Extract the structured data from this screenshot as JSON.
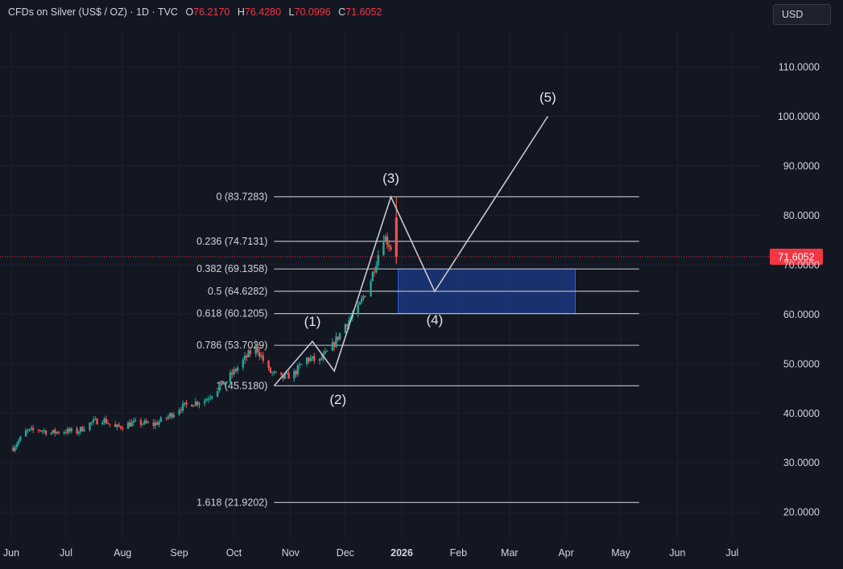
{
  "legend": {
    "symbol": "CFDs on Silver (US$ / OZ)",
    "interval": "1D",
    "source": "TVC",
    "open_label": "O",
    "open": "76.2170",
    "high_label": "H",
    "high": "76.4280",
    "low_label": "L",
    "low": "70.0996",
    "close_label": "C",
    "close": "71.6052"
  },
  "currency_button": "USD",
  "colors": {
    "background": "#131722",
    "up_candle": "#26a69a",
    "down_candle": "#ef5350",
    "price_line": "#f23645",
    "price_tag": "#f23645",
    "fib_line": "#b2b5be",
    "wave_line": "#c7c9d1",
    "target_box": "#2962ff",
    "axis_text": "#d1d4dc"
  },
  "chart_data": {
    "type": "candlestick",
    "title": "CFDs on Silver (US$ / OZ) · 1D · TVC",
    "ylim": [
      14.5,
      117
    ],
    "price_axis_ticks": [
      "110.0000",
      "100.0000",
      "90.0000",
      "80.0000",
      "70.0000",
      "60.0000",
      "50.0000",
      "40.0000",
      "30.0000",
      "20.0000"
    ],
    "time_axis_ticks": [
      {
        "label": "Jun",
        "date": "2025-06-01"
      },
      {
        "label": "Jul",
        "date": "2025-07-01"
      },
      {
        "label": "Aug",
        "date": "2025-08-01"
      },
      {
        "label": "Sep",
        "date": "2025-09-01"
      },
      {
        "label": "Oct",
        "date": "2025-10-01"
      },
      {
        "label": "Nov",
        "date": "2025-11-01"
      },
      {
        "label": "Dec",
        "date": "2025-12-01"
      },
      {
        "label": "2026",
        "date": "2026-01-01",
        "bold": true
      },
      {
        "label": "Feb",
        "date": "2026-02-01"
      },
      {
        "label": "Mar",
        "date": "2026-03-01"
      },
      {
        "label": "Apr",
        "date": "2026-04-01"
      },
      {
        "label": "May",
        "date": "2026-05-01"
      },
      {
        "label": "Jun",
        "date": "2026-06-01"
      },
      {
        "label": "Jul",
        "date": "2026-07-01"
      }
    ],
    "last_price": {
      "value": 71.6052,
      "label": "71.6052"
    },
    "series": [
      {
        "name": "CFDs on Silver (US$ / OZ)",
        "points": [
          {
            "date": "2025-06-02",
            "close": 33.0
          },
          {
            "date": "2025-06-09",
            "close": 36.2
          },
          {
            "date": "2025-06-16",
            "close": 36.7
          },
          {
            "date": "2025-06-23",
            "close": 36.0
          },
          {
            "date": "2025-06-30",
            "close": 36.4
          },
          {
            "date": "2025-07-07",
            "close": 36.2
          },
          {
            "date": "2025-07-14",
            "close": 37.9
          },
          {
            "date": "2025-07-21",
            "close": 38.8
          },
          {
            "date": "2025-07-28",
            "close": 37.0
          },
          {
            "date": "2025-08-04",
            "close": 37.8
          },
          {
            "date": "2025-08-11",
            "close": 38.0
          },
          {
            "date": "2025-08-18",
            "close": 37.7
          },
          {
            "date": "2025-08-25",
            "close": 39.0
          },
          {
            "date": "2025-09-01",
            "close": 41.0
          },
          {
            "date": "2025-09-08",
            "close": 42.0
          },
          {
            "date": "2025-09-15",
            "close": 42.6
          },
          {
            "date": "2025-09-22",
            "close": 45.0
          },
          {
            "date": "2025-09-29",
            "close": 47.5
          },
          {
            "date": "2025-10-06",
            "close": 50.5
          },
          {
            "date": "2025-10-13",
            "close": 53.6
          },
          {
            "date": "2025-10-20",
            "close": 48.5
          },
          {
            "date": "2025-10-27",
            "close": 47.0
          },
          {
            "date": "2025-11-03",
            "close": 48.0
          },
          {
            "date": "2025-11-10",
            "close": 51.0
          },
          {
            "date": "2025-11-17",
            "close": 50.5
          },
          {
            "date": "2025-11-24",
            "close": 53.5
          },
          {
            "date": "2025-12-01",
            "close": 58.0
          },
          {
            "date": "2025-12-08",
            "close": 61.0
          },
          {
            "date": "2025-12-15",
            "close": 67.0
          },
          {
            "date": "2025-12-22",
            "close": 76.0
          },
          {
            "date": "2025-12-29",
            "close": 71.6
          }
        ]
      }
    ],
    "fibonacci": [
      {
        "ratio": 0,
        "price": 83.7283,
        "label": "0 (83.7283)"
      },
      {
        "ratio": 0.236,
        "price": 74.7131,
        "label": "0.236 (74.7131)"
      },
      {
        "ratio": 0.382,
        "price": 69.1358,
        "label": "0.382 (69.1358)"
      },
      {
        "ratio": 0.5,
        "price": 64.6282,
        "label": "0.5 (64.6282)"
      },
      {
        "ratio": 0.618,
        "price": 60.1205,
        "label": "0.618 (60.1205)"
      },
      {
        "ratio": 0.786,
        "price": 53.7029,
        "label": "0.786 (53.7029)"
      },
      {
        "ratio": 1,
        "price": 45.518,
        "label": "1 (45.5180)"
      },
      {
        "ratio": 1.618,
        "price": 21.9202,
        "label": "1.618 (21.9202)"
      }
    ],
    "fib_span": {
      "start": "2025-10-23",
      "end": "2026-05-11"
    },
    "wave_path": [
      {
        "date": "2025-10-23",
        "price": 45.5
      },
      {
        "date": "2025-11-13",
        "price": 54.5
      },
      {
        "date": "2025-11-25",
        "price": 48.5
      },
      {
        "date": "2025-12-26",
        "price": 83.7
      },
      {
        "date": "2026-01-19",
        "price": 64.6
      },
      {
        "date": "2026-03-22",
        "price": 100.0
      }
    ],
    "wave_labels": [
      {
        "label": "(1)",
        "date": "2025-11-13",
        "price": 57.6
      },
      {
        "label": "(2)",
        "date": "2025-11-27",
        "price": 41.8
      },
      {
        "label": "(3)",
        "date": "2025-12-26",
        "price": 86.6
      },
      {
        "label": "(4)",
        "date": "2026-01-19",
        "price": 57.9
      },
      {
        "label": "(5)",
        "date": "2026-03-22",
        "price": 102.9
      }
    ],
    "target_zone": {
      "start": "2025-12-30",
      "end": "2026-04-06",
      "top": 69.1358,
      "bottom": 60.1205
    }
  }
}
